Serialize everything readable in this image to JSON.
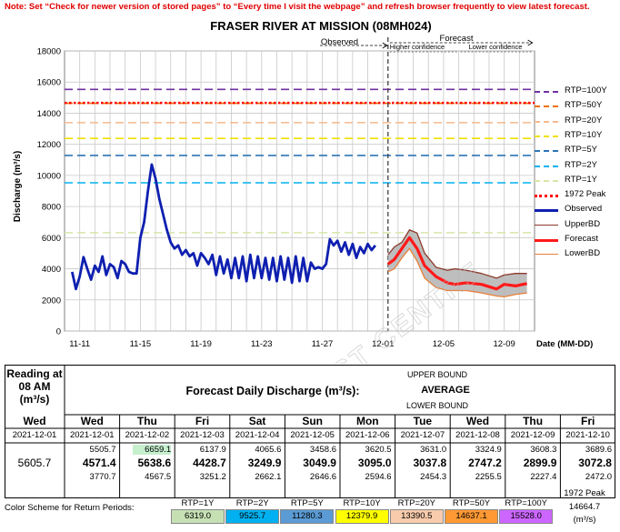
{
  "note": "Note: Set “Check for newer version of stored pages” to “Every time I visit the webpage” and refresh browser frequently to view latest forecast.",
  "watermark": "RIVER FORECAST CENTRE",
  "chart_data": {
    "type": "line",
    "title": "FRASER RIVER AT MISSION (08MH024)",
    "ylabel": "Discharge (m³/s)",
    "xlabel": "Date (MM-DD)",
    "ylim": [
      0,
      18000
    ],
    "yticks": [
      0,
      2000,
      4000,
      6000,
      8000,
      10000,
      12000,
      14000,
      16000,
      18000
    ],
    "xlim": [
      "2021-11-10",
      "2021-12-11"
    ],
    "xticks": [
      {
        "date": "2021-11-11",
        "label": "11-11"
      },
      {
        "date": "2021-11-15",
        "label": "11-15"
      },
      {
        "date": "2021-11-19",
        "label": "11-19"
      },
      {
        "date": "2021-11-23",
        "label": "11-23"
      },
      {
        "date": "2021-11-27",
        "label": "11-27"
      },
      {
        "date": "2021-12-01",
        "label": "12-01"
      },
      {
        "date": "2021-12-05",
        "label": "12-05"
      },
      {
        "date": "2021-12-09",
        "label": "12-09"
      }
    ],
    "grid": true,
    "observed_label": "Observed",
    "forecast_label": "Forecast",
    "higher_confidence_label": "Higher confidence",
    "lower_confidence_label": "Lower confidence",
    "forecast_start": "2021-12-01 08:00",
    "confidence_split": "2021-12-06",
    "forecast_end": "2021-12-10 12:00",
    "thresholds": [
      {
        "name": "RTP=100Y",
        "value": 15528.0,
        "color": "#7030a0"
      },
      {
        "name": "RTP=50Y",
        "value": 14637.1,
        "color": "#f07000"
      },
      {
        "name": "RTP=20Y",
        "value": 13390.5,
        "color": "#f5b98c"
      },
      {
        "name": "RTP=10Y",
        "value": 12379.9,
        "color": "#f0e000"
      },
      {
        "name": "RTP=5Y",
        "value": 11280.3,
        "color": "#2e75b6"
      },
      {
        "name": "RTP=2Y",
        "value": 9525.7,
        "color": "#00b0f0"
      },
      {
        "name": "RTP=1Y",
        "value": 6319.0,
        "color": "#d6e6a8"
      },
      {
        "name": "1972 Peak",
        "value": 14664.7,
        "color": "#ff0000"
      }
    ],
    "series": [
      {
        "name": "Observed",
        "color": "#0e1fb0",
        "points": [
          [
            "2021-11-10 12:00",
            3800
          ],
          [
            "2021-11-10 18:00",
            2700
          ],
          [
            "2021-11-11 00:00",
            3500
          ],
          [
            "2021-11-11 06:00",
            4750
          ],
          [
            "2021-11-11 12:00",
            4000
          ],
          [
            "2021-11-11 18:00",
            3300
          ],
          [
            "2021-11-12 00:00",
            4200
          ],
          [
            "2021-11-12 06:00",
            3800
          ],
          [
            "2021-11-12 12:00",
            4800
          ],
          [
            "2021-11-12 18:00",
            3600
          ],
          [
            "2021-11-13 00:00",
            4300
          ],
          [
            "2021-11-13 06:00",
            4100
          ],
          [
            "2021-11-13 12:00",
            3400
          ],
          [
            "2021-11-13 18:00",
            4500
          ],
          [
            "2021-11-14 00:00",
            4300
          ],
          [
            "2021-11-14 06:00",
            3800
          ],
          [
            "2021-11-14 12:00",
            3700
          ],
          [
            "2021-11-14 18:00",
            3700
          ],
          [
            "2021-11-15 00:00",
            6000
          ],
          [
            "2021-11-15 06:00",
            7000
          ],
          [
            "2021-11-15 12:00",
            9000
          ],
          [
            "2021-11-15 18:00",
            10700
          ],
          [
            "2021-11-16 00:00",
            9800
          ],
          [
            "2021-11-16 06:00",
            8500
          ],
          [
            "2021-11-16 12:00",
            7500
          ],
          [
            "2021-11-16 18:00",
            6500
          ],
          [
            "2021-11-17 00:00",
            5700
          ],
          [
            "2021-11-17 06:00",
            5300
          ],
          [
            "2021-11-17 12:00",
            5500
          ],
          [
            "2021-11-17 18:00",
            4900
          ],
          [
            "2021-11-18 00:00",
            5200
          ],
          [
            "2021-11-18 06:00",
            4800
          ],
          [
            "2021-11-18 12:00",
            5000
          ],
          [
            "2021-11-18 18:00",
            4200
          ],
          [
            "2021-11-19 00:00",
            5000
          ],
          [
            "2021-11-19 06:00",
            4700
          ],
          [
            "2021-11-19 12:00",
            4300
          ],
          [
            "2021-11-19 18:00",
            4900
          ],
          [
            "2021-11-20 00:00",
            3600
          ],
          [
            "2021-11-20 06:00",
            4800
          ],
          [
            "2021-11-20 12:00",
            3700
          ],
          [
            "2021-11-20 18:00",
            4600
          ],
          [
            "2021-11-21 00:00",
            3400
          ],
          [
            "2021-11-21 06:00",
            4700
          ],
          [
            "2021-11-21 12:00",
            3400
          ],
          [
            "2021-11-21 18:00",
            4800
          ],
          [
            "2021-11-22 00:00",
            3200
          ],
          [
            "2021-11-22 06:00",
            4900
          ],
          [
            "2021-11-22 12:00",
            3400
          ],
          [
            "2021-11-22 18:00",
            4800
          ],
          [
            "2021-11-23 00:00",
            3400
          ],
          [
            "2021-11-23 06:00",
            4700
          ],
          [
            "2021-11-23 12:00",
            3300
          ],
          [
            "2021-11-23 18:00",
            4700
          ],
          [
            "2021-11-24 00:00",
            3200
          ],
          [
            "2021-11-24 06:00",
            4800
          ],
          [
            "2021-11-24 12:00",
            3300
          ],
          [
            "2021-11-24 18:00",
            4700
          ],
          [
            "2021-11-25 00:00",
            3100
          ],
          [
            "2021-11-25 06:00",
            4800
          ],
          [
            "2021-11-25 12:00",
            3200
          ],
          [
            "2021-11-25 18:00",
            4700
          ],
          [
            "2021-11-26 00:00",
            3200
          ],
          [
            "2021-11-26 06:00",
            4400
          ],
          [
            "2021-11-26 12:00",
            4000
          ],
          [
            "2021-11-26 18:00",
            4100
          ],
          [
            "2021-11-27 00:00",
            4000
          ],
          [
            "2021-11-27 06:00",
            4300
          ],
          [
            "2021-11-27 12:00",
            5900
          ],
          [
            "2021-11-27 18:00",
            5500
          ],
          [
            "2021-11-28 00:00",
            5800
          ],
          [
            "2021-11-28 06:00",
            5100
          ],
          [
            "2021-11-28 12:00",
            5700
          ],
          [
            "2021-11-28 18:00",
            4900
          ],
          [
            "2021-11-29 00:00",
            5600
          ],
          [
            "2021-11-29 06:00",
            4700
          ],
          [
            "2021-11-29 12:00",
            5400
          ],
          [
            "2021-11-29 18:00",
            5000
          ],
          [
            "2021-11-30 00:00",
            5600
          ],
          [
            "2021-11-30 06:00",
            5200
          ],
          [
            "2021-11-30 12:00",
            5500
          ]
        ]
      },
      {
        "name": "UpperBD",
        "color": "#8b3a2a",
        "points": [
          [
            "2021-12-01 08:00",
            4900
          ],
          [
            "2021-12-01 18:00",
            5400
          ],
          [
            "2021-12-02 06:00",
            5700
          ],
          [
            "2021-12-02 18:00",
            6500
          ],
          [
            "2021-12-03 06:00",
            6300
          ],
          [
            "2021-12-03 18:00",
            5000
          ],
          [
            "2021-12-04 12:00",
            4100
          ],
          [
            "2021-12-05 06:00",
            3900
          ],
          [
            "2021-12-05 18:00",
            4000
          ],
          [
            "2021-12-06 12:00",
            3900
          ],
          [
            "2021-12-07 12:00",
            3700
          ],
          [
            "2021-12-08 12:00",
            3400
          ],
          [
            "2021-12-09 00:00",
            3600
          ],
          [
            "2021-12-09 18:00",
            3700
          ],
          [
            "2021-12-10 12:00",
            3700
          ]
        ]
      },
      {
        "name": "Forecast",
        "color": "#ff1a1a",
        "points": [
          [
            "2021-12-01 08:00",
            4300
          ],
          [
            "2021-12-01 18:00",
            4600
          ],
          [
            "2021-12-02 06:00",
            5300
          ],
          [
            "2021-12-02 18:00",
            6000
          ],
          [
            "2021-12-03 06:00",
            5300
          ],
          [
            "2021-12-03 18:00",
            4200
          ],
          [
            "2021-12-04 12:00",
            3500
          ],
          [
            "2021-12-05 06:00",
            3100
          ],
          [
            "2021-12-05 18:00",
            3000
          ],
          [
            "2021-12-06 12:00",
            3100
          ],
          [
            "2021-12-07 12:00",
            3000
          ],
          [
            "2021-12-08 12:00",
            2700
          ],
          [
            "2021-12-09 00:00",
            3000
          ],
          [
            "2021-12-09 18:00",
            2900
          ],
          [
            "2021-12-10 12:00",
            3050
          ]
        ]
      },
      {
        "name": "LowerBD",
        "color": "#e8803a",
        "points": [
          [
            "2021-12-01 08:00",
            3800
          ],
          [
            "2021-12-01 18:00",
            4000
          ],
          [
            "2021-12-02 06:00",
            4700
          ],
          [
            "2021-12-02 18:00",
            5300
          ],
          [
            "2021-12-03 06:00",
            4500
          ],
          [
            "2021-12-03 18:00",
            3400
          ],
          [
            "2021-12-04 12:00",
            2800
          ],
          [
            "2021-12-05 06:00",
            2600
          ],
          [
            "2021-12-05 18:00",
            2600
          ],
          [
            "2021-12-06 12:00",
            2600
          ],
          [
            "2021-12-07 12:00",
            2450
          ],
          [
            "2021-12-08 12:00",
            2250
          ],
          [
            "2021-12-09 00:00",
            2200
          ],
          [
            "2021-12-09 18:00",
            2350
          ],
          [
            "2021-12-10 12:00",
            2450
          ]
        ]
      }
    ]
  },
  "legend": [
    {
      "label": "RTP=100Y",
      "color": "#7030a0",
      "style": "dash"
    },
    {
      "label": "RTP=50Y",
      "color": "#f07000",
      "style": "dash"
    },
    {
      "label": "RTP=20Y",
      "color": "#f5b98c",
      "style": "dash"
    },
    {
      "label": "RTP=10Y",
      "color": "#f0e000",
      "style": "dash"
    },
    {
      "label": "RTP=5Y",
      "color": "#2e75b6",
      "style": "dash"
    },
    {
      "label": "RTP=2Y",
      "color": "#00b0f0",
      "style": "dash"
    },
    {
      "label": "RTP=1Y",
      "color": "#d6e6a8",
      "style": "dash"
    },
    {
      "label": "1972 Peak",
      "color": "#ff0000",
      "style": "dot"
    },
    {
      "label": "Observed",
      "color": "#0e1fb0",
      "style": "thick"
    },
    {
      "label": "UpperBD",
      "color": "#8b3a2a",
      "style": "solid"
    },
    {
      "label": "Forecast",
      "color": "#ff1a1a",
      "style": "thick"
    },
    {
      "label": "LowerBD",
      "color": "#e8803a",
      "style": "solid"
    }
  ],
  "table": {
    "reading_title": "Reading at 08 AM (m³/s)",
    "reading_day": "Wed",
    "reading_date": "2021-12-01",
    "reading_value": "5605.7",
    "forecast_title": "Forecast Daily Discharge (m³/s):",
    "upper_label": "UPPER BOUND",
    "average_label": "AVERAGE",
    "lower_label": "LOWER BOUND",
    "days": [
      {
        "day": "Wed",
        "date": "2021-12-01",
        "upper": "5505.7",
        "avg": "4571.4",
        "lower": "3770.7"
      },
      {
        "day": "Thu",
        "date": "2021-12-02",
        "upper": "6659.1",
        "avg": "5638.6",
        "lower": "4567.5"
      },
      {
        "day": "Fri",
        "date": "2021-12-03",
        "upper": "6137.9",
        "avg": "4428.7",
        "lower": "3251.2"
      },
      {
        "day": "Sat",
        "date": "2021-12-04",
        "upper": "4065.6",
        "avg": "3249.9",
        "lower": "2662.1"
      },
      {
        "day": "Sun",
        "date": "2021-12-05",
        "upper": "3458.6",
        "avg": "3049.9",
        "lower": "2646.6"
      },
      {
        "day": "Mon",
        "date": "2021-12-06",
        "upper": "3620.5",
        "avg": "3095.0",
        "lower": "2594.6"
      },
      {
        "day": "Tue",
        "date": "2021-12-07",
        "upper": "3631.0",
        "avg": "3037.8",
        "lower": "2454.3"
      },
      {
        "day": "Wed",
        "date": "2021-12-08",
        "upper": "3324.9",
        "avg": "2747.2",
        "lower": "2255.5"
      },
      {
        "day": "Thu",
        "date": "2021-12-09",
        "upper": "3608.3",
        "avg": "2899.9",
        "lower": "2227.4"
      },
      {
        "day": "Fri",
        "date": "2021-12-10",
        "upper": "3689.6",
        "avg": "3072.8",
        "lower": "2472.0"
      }
    ],
    "highlight_color": "#c6efce"
  },
  "color_scheme": {
    "label": "Color Scheme for Return Periods:",
    "items": [
      {
        "rtp": "RTP=1Y",
        "value": "6319.0",
        "color": "#c6e0b4"
      },
      {
        "rtp": "RTP=2Y",
        "value": "9525.7",
        "color": "#00b0f0"
      },
      {
        "rtp": "RTP=5Y",
        "value": "11280.3",
        "color": "#5b9bd5"
      },
      {
        "rtp": "RTP=10Y",
        "value": "12379.9",
        "color": "#ffff00"
      },
      {
        "rtp": "RTP=20Y",
        "value": "13390.5",
        "color": "#f8cbad"
      },
      {
        "rtp": "RTP=50Y",
        "value": "14637.1",
        "color": "#ff9933"
      },
      {
        "rtp": "RTP=100Y",
        "value": "15528.0",
        "color": "#cc66ff"
      }
    ],
    "peak_label": "1972 Peak",
    "peak_value": "14664.7",
    "units": "(m³/s)"
  }
}
